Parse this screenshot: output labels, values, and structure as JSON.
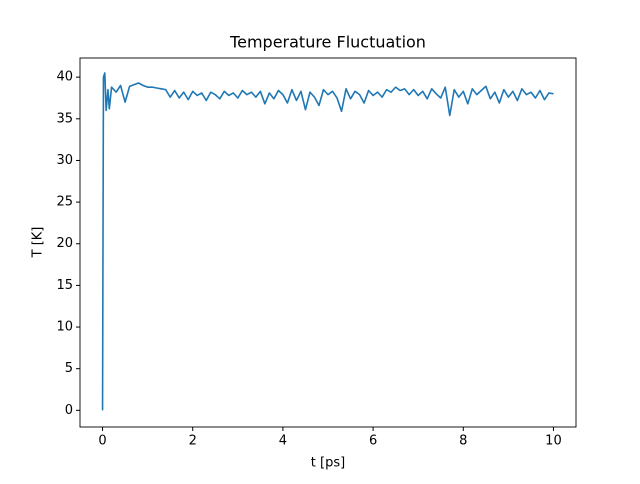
{
  "chart_data": {
    "type": "line",
    "title": "Temperature Fluctuation",
    "x_label": "t [ps]",
    "y_label": "T [K]",
    "color": "#1f77b4",
    "x": [
      0,
      0.02,
      0.05,
      0.08,
      0.12,
      0.15,
      0.2,
      0.3,
      0.4,
      0.5,
      0.6,
      0.7,
      0.8,
      0.9,
      1.0,
      1.1,
      1.2,
      1.3,
      1.4,
      1.5,
      1.6,
      1.7,
      1.8,
      1.9,
      2.0,
      2.1,
      2.2,
      2.3,
      2.4,
      2.5,
      2.6,
      2.7,
      2.8,
      2.9,
      3.0,
      3.1,
      3.2,
      3.3,
      3.4,
      3.5,
      3.6,
      3.7,
      3.8,
      3.9,
      4.0,
      4.1,
      4.2,
      4.3,
      4.4,
      4.5,
      4.6,
      4.7,
      4.8,
      4.9,
      5.0,
      5.1,
      5.2,
      5.3,
      5.4,
      5.5,
      5.6,
      5.7,
      5.8,
      5.9,
      6.0,
      6.1,
      6.2,
      6.3,
      6.4,
      6.5,
      6.6,
      6.7,
      6.8,
      6.9,
      7.0,
      7.1,
      7.2,
      7.3,
      7.4,
      7.5,
      7.6,
      7.7,
      7.8,
      7.9,
      8.0,
      8.1,
      8.2,
      8.3,
      8.4,
      8.5,
      8.6,
      8.7,
      8.8,
      8.9,
      9.0,
      9.1,
      9.2,
      9.3,
      9.4,
      9.5,
      9.6,
      9.7,
      9.8,
      9.9,
      10.0
    ],
    "values": [
      0,
      40,
      40.5,
      36,
      38.5,
      36.2,
      38.8,
      38.2,
      39,
      37,
      38.9,
      39.1,
      39.3,
      39.0,
      38.8,
      38.8,
      38.7,
      38.6,
      38.5,
      37.6,
      38.4,
      37.5,
      38.2,
      37.3,
      38.3,
      37.8,
      38.1,
      37.2,
      38.2,
      37.9,
      37.4,
      38.3,
      37.8,
      38.1,
      37.5,
      38.4,
      37.9,
      38.2,
      37.6,
      38.3,
      36.8,
      38.1,
      37.4,
      38.4,
      37.9,
      36.9,
      38.5,
      37.2,
      38.3,
      36.1,
      38.2,
      37.6,
      36.6,
      38.5,
      37.9,
      38.3,
      37.5,
      35.9,
      38.6,
      37.4,
      38.3,
      37.9,
      36.9,
      38.4,
      37.8,
      38.2,
      37.6,
      38.5,
      38.2,
      38.8,
      38.4,
      38.6,
      37.9,
      38.5,
      37.8,
      38.3,
      37.4,
      38.6,
      38.0,
      37.5,
      38.8,
      35.4,
      38.5,
      37.6,
      38.3,
      36.8,
      38.6,
      37.9,
      38.4,
      38.9,
      37.4,
      38.2,
      36.9,
      38.5,
      37.6,
      38.3,
      37.2,
      38.6,
      37.9,
      38.2,
      37.5,
      38.4,
      37.3,
      38.1,
      38.0
    ],
    "xlim": [
      -0.5,
      10.5
    ],
    "xticks": [
      0,
      2,
      4,
      6,
      8,
      10
    ],
    "ylim": [
      -2,
      42.3
    ],
    "yticks": [
      0,
      5,
      10,
      15,
      20,
      25,
      30,
      35,
      40
    ]
  }
}
